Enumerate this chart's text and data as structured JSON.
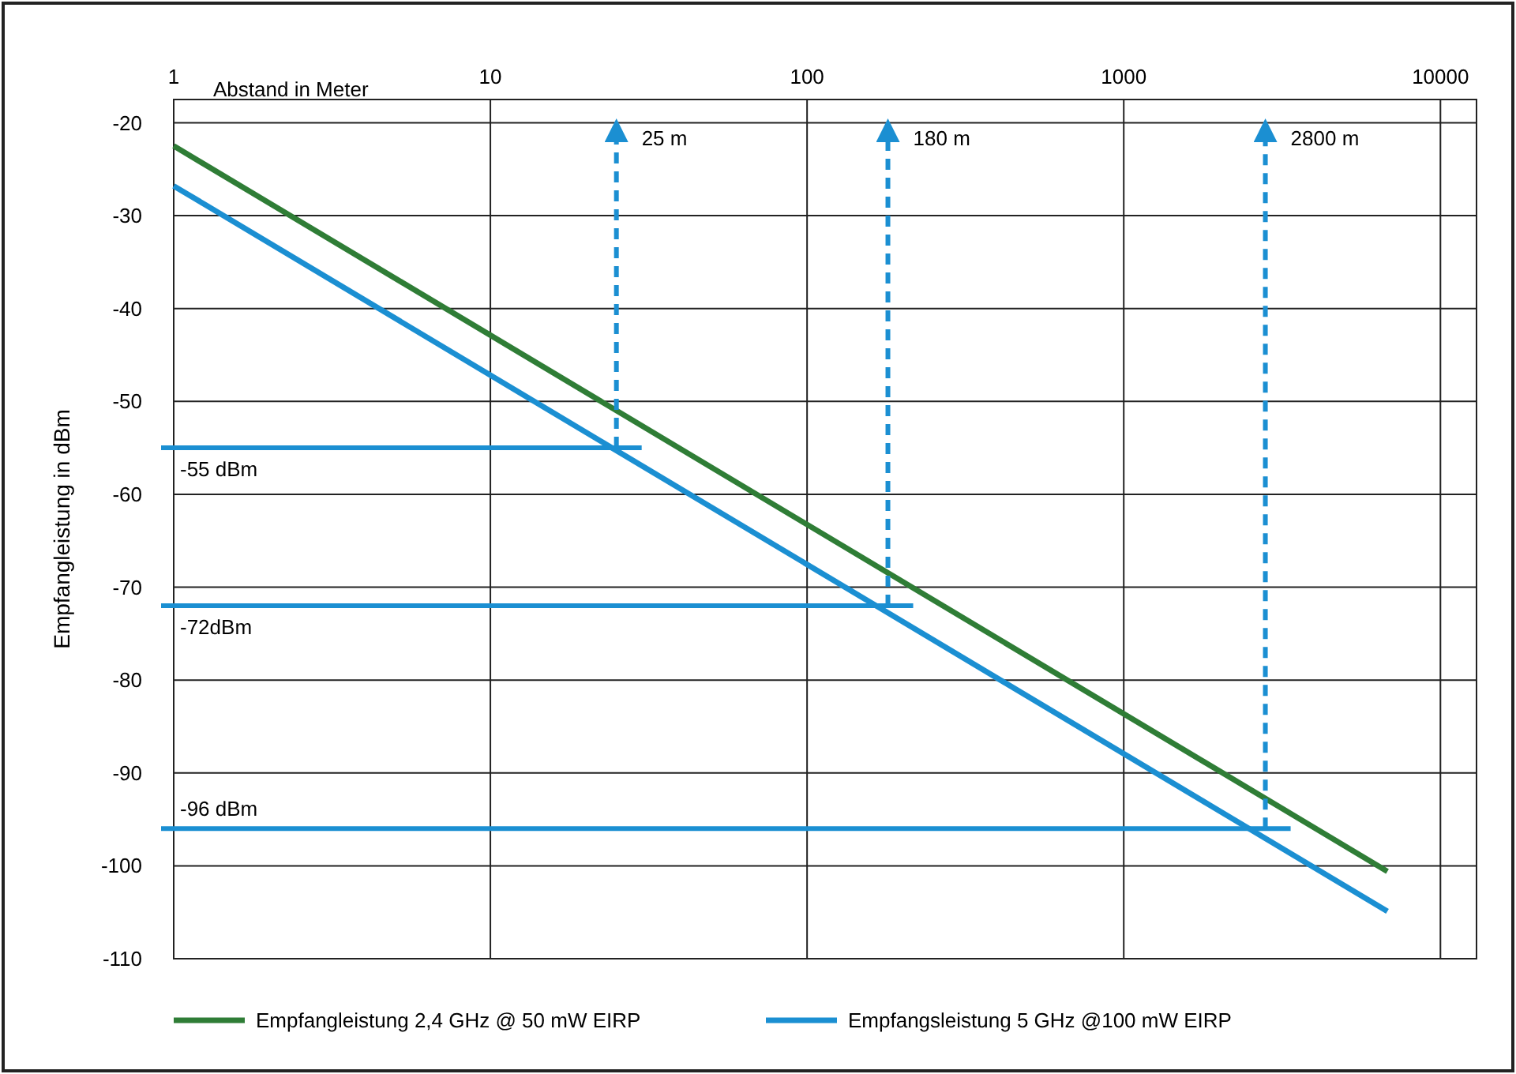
{
  "chart_data": {
    "type": "line",
    "xlabel": "Abstand in Meter",
    "ylabel": "Empfangleistung in dBm",
    "log": "x",
    "xlim": [
      1,
      13000
    ],
    "xticks": [
      1,
      10,
      100,
      1000,
      10000
    ],
    "ylim": [
      -110,
      -17.5
    ],
    "yticks": [
      -20,
      -30,
      -40,
      -50,
      -60,
      -70,
      -80,
      -90,
      -100,
      -110
    ],
    "grid": true,
    "x": [
      1,
      6800
    ],
    "legend": "bottom",
    "line_style": "solid",
    "marker": "none",
    "series": [
      {
        "name": "Empfangleistung 2,4 GHz @ 50 mW EIRP",
        "color": "#2f7d36",
        "values": [
          -22.5,
          -100.6
        ]
      },
      {
        "name": "Empfangsleistung 5 GHz @100 mW EIRP",
        "color": "#1b8fd2",
        "values": [
          -26.8,
          -104.9
        ]
      }
    ],
    "ref_lines": [
      {
        "axis": "x",
        "value": 25,
        "label": "25 m",
        "color": "#1b8fd2",
        "line_style": "dashed"
      },
      {
        "axis": "x",
        "value": 180,
        "label": "180 m",
        "color": "#1b8fd2",
        "line_style": "dashed"
      },
      {
        "axis": "x",
        "value": 2800,
        "label": "2800 m",
        "color": "#1b8fd2",
        "line_style": "dashed"
      },
      {
        "axis": "y",
        "value": -55,
        "label": "-55 dBm",
        "color": "#1b8fd2",
        "line_style": "solid"
      },
      {
        "axis": "y",
        "value": -72,
        "label": "-72dBm",
        "color": "#1b8fd2",
        "line_style": "solid"
      },
      {
        "axis": "y",
        "value": -96,
        "label": "-96 dBm",
        "color": "#1b8fd2",
        "line_style": "solid"
      }
    ]
  }
}
